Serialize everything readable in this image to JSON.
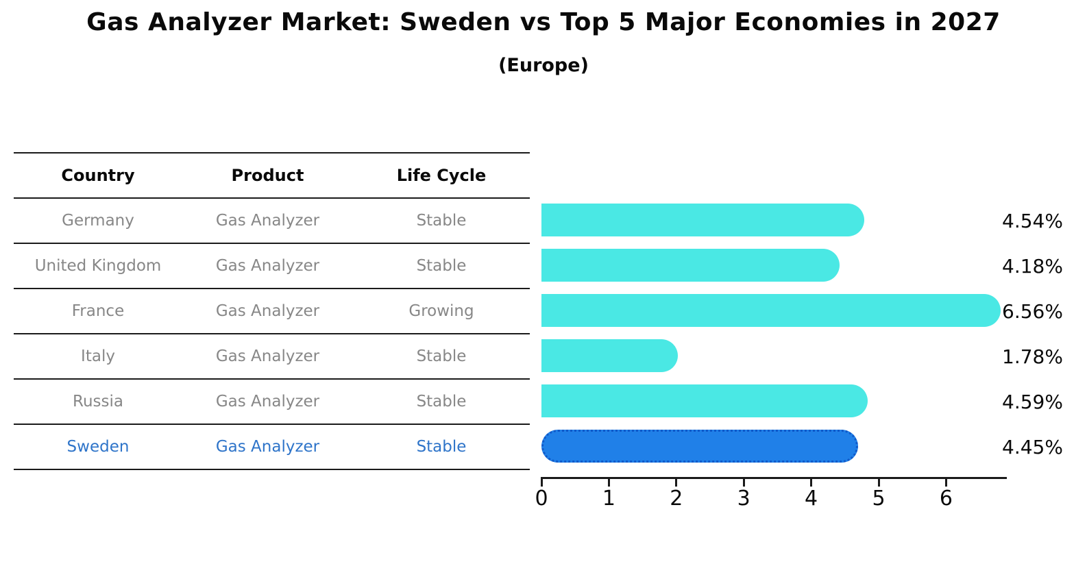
{
  "title": "Gas Analyzer Market: Sweden vs Top 5 Major Economies in 2027",
  "subtitle": "(Europe)",
  "table": {
    "headers": [
      "Country",
      "Product",
      "Life Cycle"
    ],
    "rows": [
      {
        "country": "Germany",
        "product": "Gas Analyzer",
        "life_cycle": "Stable",
        "highlighted": false
      },
      {
        "country": "United Kingdom",
        "product": "Gas Analyzer",
        "life_cycle": "Stable",
        "highlighted": false
      },
      {
        "country": "France",
        "product": "Gas Analyzer",
        "life_cycle": "Growing",
        "highlighted": false
      },
      {
        "country": "Italy",
        "product": "Gas Analyzer",
        "life_cycle": "Stable",
        "highlighted": false
      },
      {
        "country": "Russia",
        "product": "Gas Analyzer",
        "life_cycle": "Stable",
        "highlighted": false
      },
      {
        "country": "Sweden",
        "product": "Gas Analyzer",
        "life_cycle": "Stable",
        "highlighted": true
      }
    ]
  },
  "chart_data": {
    "type": "bar",
    "orientation": "horizontal",
    "title": "Gas Analyzer Market: Sweden vs Top 5 Major Economies in 2027 (Europe)",
    "categories": [
      "Germany",
      "United Kingdom",
      "France",
      "Italy",
      "Russia",
      "Sweden"
    ],
    "values": [
      4.54,
      4.18,
      6.56,
      1.78,
      4.59,
      4.45
    ],
    "value_labels": [
      "4.54%",
      "4.18%",
      "6.56%",
      "1.78%",
      "4.59%",
      "4.45%"
    ],
    "x_ticks": [
      0,
      1,
      2,
      3,
      4,
      5,
      6
    ],
    "xlim": [
      0,
      6.89
    ],
    "grid": false,
    "legend": false,
    "highlight_index": 5
  },
  "colors": {
    "bar": "#4AE8E4",
    "highlight_bar": "#2080E8",
    "highlight_bar_edge": "#1059C9",
    "highlight_text": "#2E74C9",
    "text": "#0A0A0A",
    "muted_text": "#878787"
  }
}
